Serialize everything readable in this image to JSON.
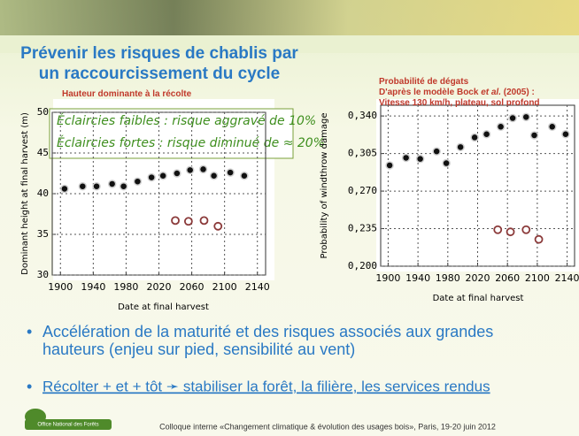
{
  "slide": {
    "title_lines": [
      "Prévenir les risques de chablis par",
      "un raccourcissement du cycle"
    ],
    "annotation_lines": [
      "Éclaircies faibles : risque aggravé de 10%",
      "Éclaircies fortes : risque diminué de ≈ 20%"
    ],
    "bullets": [
      "Accélération de la maturité et des risques associés aux grandes hauteurs (enjeu sur pied, sensibilité au vent)",
      "Récolter + et + tôt ➛ stabiliser la forêt, la filière, les services rendus"
    ],
    "logo": "Office National des Forêts",
    "footer": "Colloque interne «Changement climatique & évolution des usages bois», Paris, 19-20 juin 2012"
  },
  "chart_data": [
    {
      "type": "scatter",
      "subtitle_lines": [
        "Hauteur dominante à la récolte"
      ],
      "x_label": "Date at final harvest",
      "y_label": "Dominant height at final harvest (m)",
      "xlim": [
        1890,
        2150
      ],
      "xticks": [
        1900,
        1940,
        1980,
        2020,
        2060,
        2100,
        2140
      ],
      "ylim": [
        30,
        50
      ],
      "yticks": [
        30,
        35,
        40,
        45,
        50
      ],
      "grid": true,
      "series": [
        {
          "color": "#111111",
          "marker": "filled",
          "x": [
            1905,
            1927,
            1944,
            1963,
            1977,
            1994,
            2011,
            2025,
            2042,
            2058,
            2074,
            2087,
            2107,
            2124
          ],
          "values": [
            40.6,
            40.9,
            40.9,
            41.2,
            40.9,
            41.5,
            42.0,
            42.2,
            42.5,
            42.9,
            43.0,
            42.2,
            42.6,
            42.2
          ]
        },
        {
          "color": "#8b3a3a",
          "marker": "open",
          "x": [
            2040,
            2056,
            2075,
            2092
          ],
          "values": [
            36.7,
            36.6,
            36.7,
            36.0
          ]
        }
      ]
    },
    {
      "type": "scatter",
      "subtitle_lines": [
        "Probabilité de dégats",
        "D'après le modèle Bock |et al.| (2005) :",
        "Vitesse 130 km/h, plateau, sol profond"
      ],
      "x_label": "Date at final harvest",
      "y_label": "Probability of windthrow damage",
      "xlim": [
        1890,
        2150
      ],
      "xticks": [
        1900,
        1940,
        1980,
        2020,
        2060,
        2100,
        2140
      ],
      "ylim": [
        0.2,
        0.35
      ],
      "yticks": [
        {
          "value": 0.2,
          "label": "0,200"
        },
        {
          "value": 0.235,
          "label": "0,235"
        },
        {
          "value": 0.27,
          "label": "0,270"
        },
        {
          "value": 0.305,
          "label": "0,305"
        },
        {
          "value": 0.34,
          "label": "0,340"
        }
      ],
      "grid": true,
      "series": [
        {
          "color": "#111111",
          "marker": "filled",
          "x": [
            1902,
            1924,
            1943,
            1965,
            1978,
            1997,
            2016,
            2032,
            2051,
            2067,
            2085,
            2096,
            2120,
            2138
          ],
          "values": [
            0.294,
            0.301,
            0.3,
            0.307,
            0.296,
            0.311,
            0.32,
            0.323,
            0.33,
            0.338,
            0.339,
            0.322,
            0.33,
            0.323
          ]
        },
        {
          "color": "#8b3a3a",
          "marker": "open",
          "x": [
            2047,
            2064,
            2085,
            2102
          ],
          "values": [
            0.234,
            0.232,
            0.234,
            0.225
          ]
        }
      ]
    }
  ]
}
